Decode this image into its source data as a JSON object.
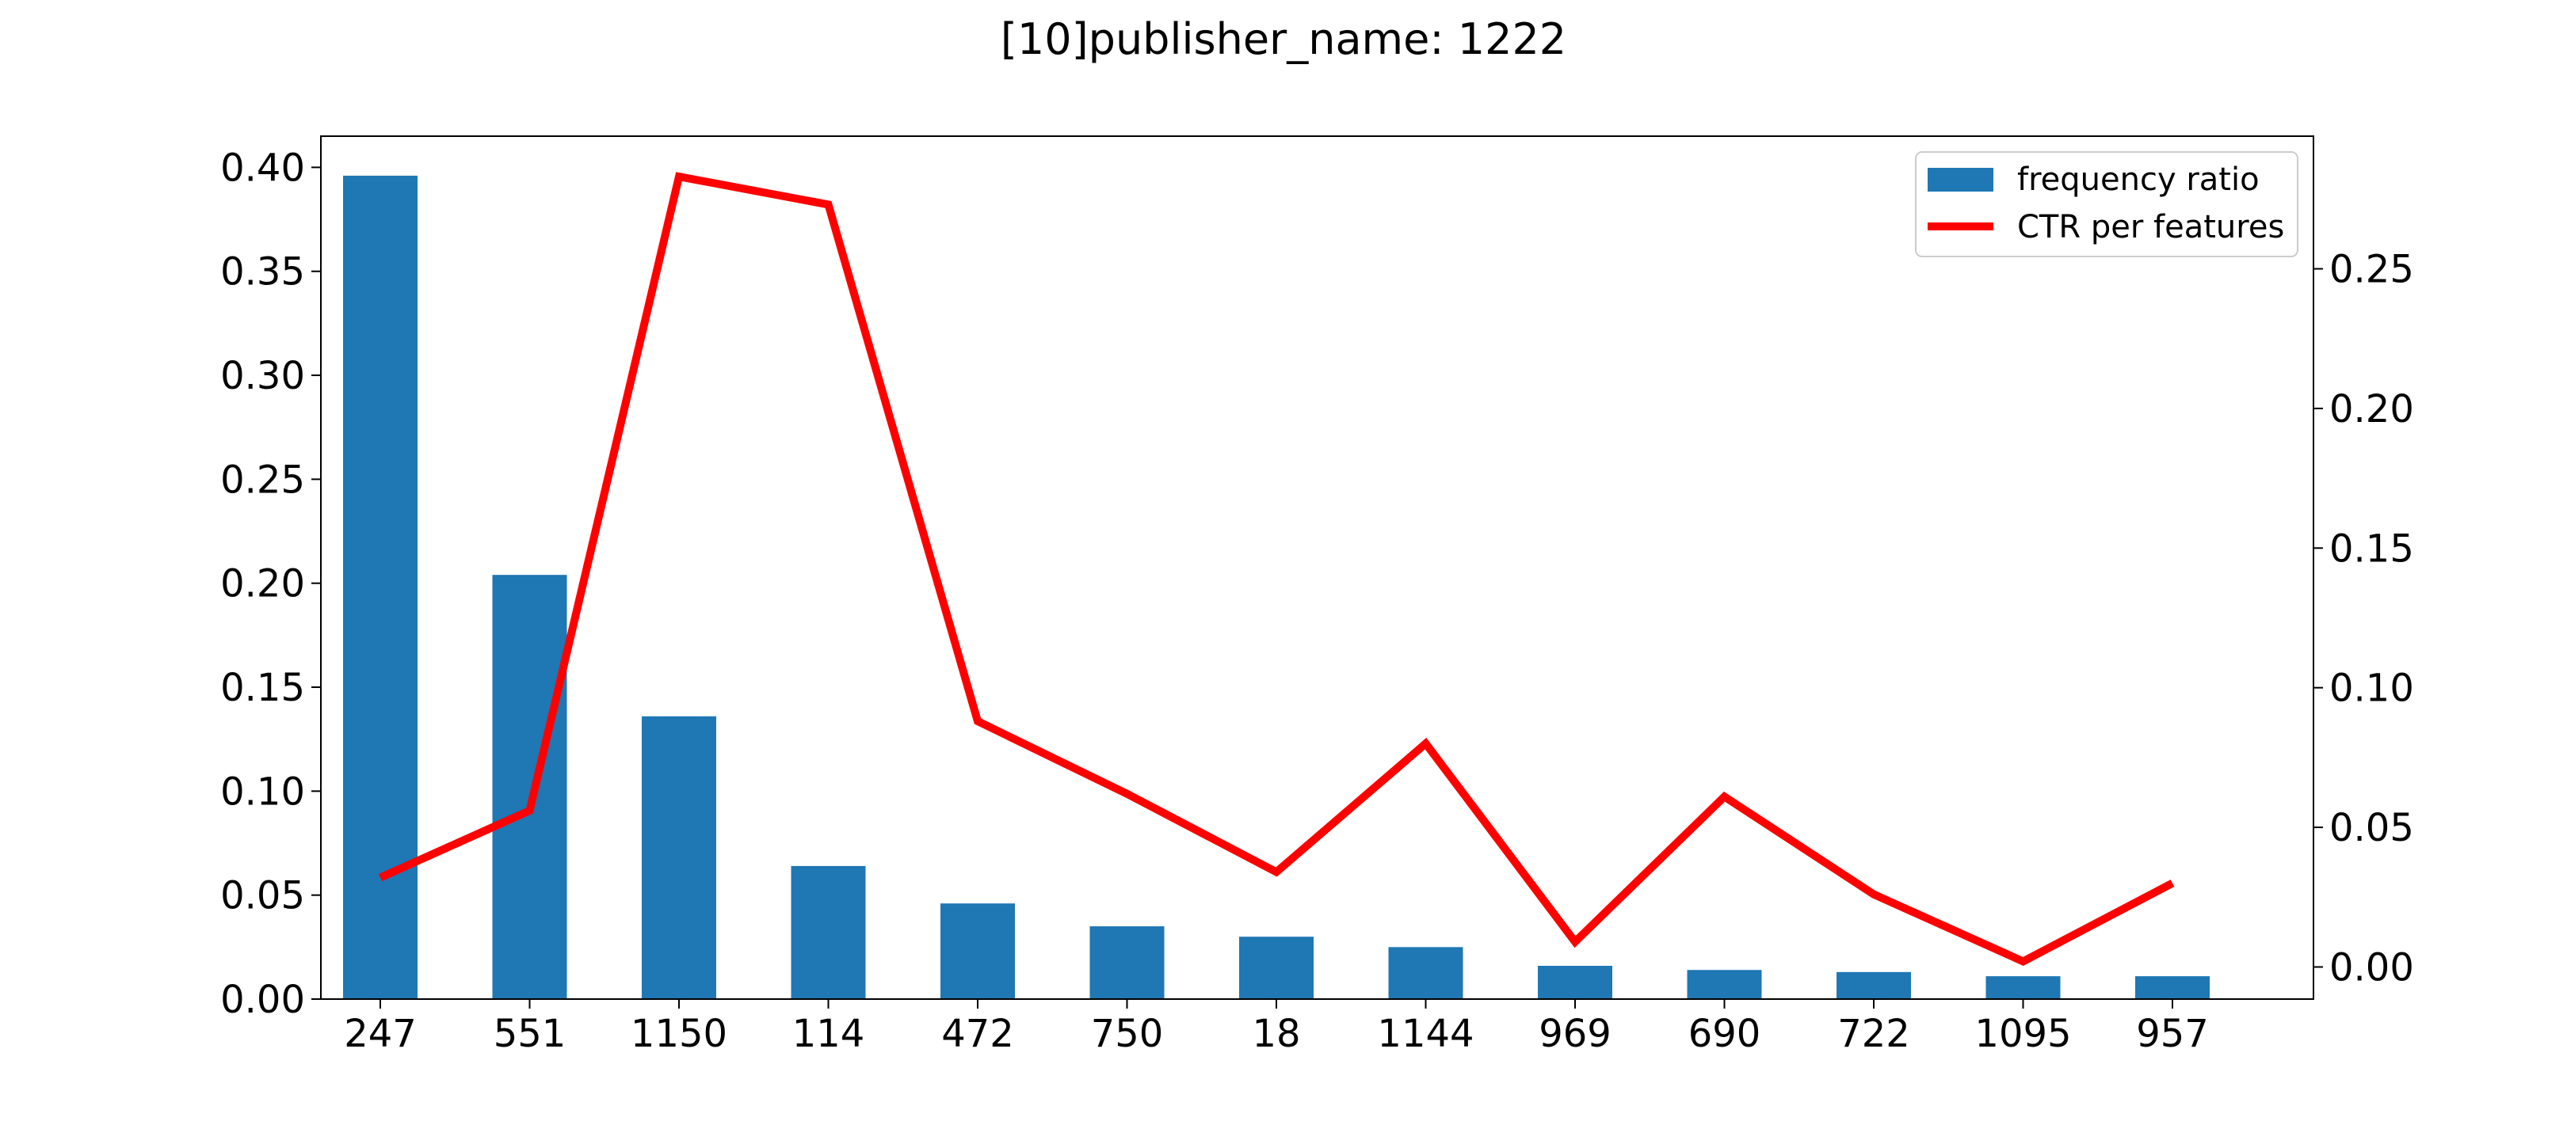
{
  "chart_data": {
    "type": "bar",
    "title": "[10]publisher_name: 1222",
    "categories": [
      "247",
      "551",
      "1150",
      "114",
      "472",
      "750",
      "18",
      "1144",
      "969",
      "690",
      "722",
      "1095",
      "957"
    ],
    "series": [
      {
        "name": "frequency ratio",
        "type": "bar",
        "axis": "left",
        "color": "#1f77b4",
        "values": [
          0.396,
          0.204,
          0.136,
          0.064,
          0.046,
          0.035,
          0.03,
          0.025,
          0.016,
          0.014,
          0.013,
          0.011,
          0.011
        ]
      },
      {
        "name": "CTR per features",
        "type": "line",
        "axis": "right",
        "color": "#ff0000",
        "values": [
          0.032,
          0.056,
          0.283,
          0.273,
          0.088,
          0.062,
          0.034,
          0.08,
          0.009,
          0.061,
          0.026,
          0.002,
          0.03
        ]
      }
    ],
    "y_left": {
      "ylim": [
        0,
        0.415
      ],
      "ticks": [
        "0.00",
        "0.05",
        "0.10",
        "0.15",
        "0.20",
        "0.25",
        "0.30",
        "0.35",
        "0.40"
      ]
    },
    "y_right": {
      "ylim": [
        -0.0115,
        0.2975
      ],
      "ticks": [
        "0.00",
        "0.05",
        "0.10",
        "0.15",
        "0.20",
        "0.25"
      ]
    },
    "xlabel": "",
    "ylabel": "",
    "grid": false,
    "legend": "top-right"
  }
}
